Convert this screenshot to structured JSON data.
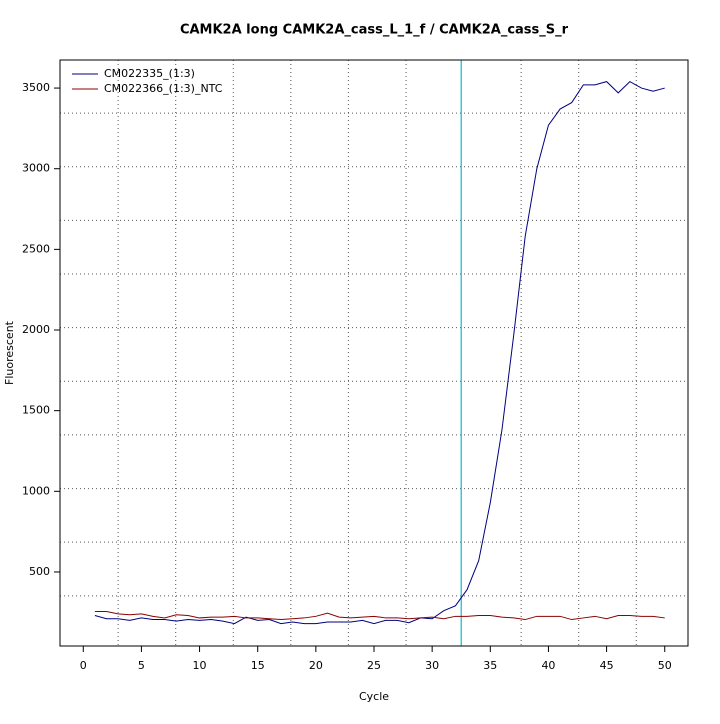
{
  "chart_data": {
    "type": "line",
    "title": "CAMK2A long CAMK2A_cass_L_1_f / CAMK2A_cass_S_r",
    "x_label": "Cycle",
    "y_label": "Fluorescent",
    "x": [
      1,
      2,
      3,
      4,
      5,
      6,
      7,
      8,
      9,
      10,
      11,
      12,
      13,
      14,
      15,
      16,
      17,
      18,
      19,
      20,
      21,
      22,
      23,
      24,
      25,
      26,
      27,
      28,
      29,
      30,
      31,
      32,
      33,
      34,
      35,
      36,
      37,
      38,
      39,
      40,
      41,
      42,
      43,
      44,
      45,
      46,
      47,
      48,
      49,
      50
    ],
    "series": [
      {
        "name": "CM022335_(1:3)",
        "color": "#000080",
        "values": [
          230,
          210,
          210,
          200,
          215,
          205,
          205,
          195,
          205,
          200,
          205,
          195,
          180,
          220,
          200,
          205,
          180,
          190,
          180,
          180,
          190,
          190,
          190,
          200,
          180,
          200,
          200,
          185,
          215,
          210,
          260,
          290,
          390,
          570,
          930,
          1380,
          1960,
          2580,
          3000,
          3270,
          3370,
          3410,
          3520,
          3520,
          3540,
          3470,
          3540,
          3500,
          3480,
          3500
        ]
      },
      {
        "name": "CM022366_(1:3)_NTC",
        "color": "#8b0000",
        "values": [
          255,
          255,
          240,
          235,
          240,
          225,
          215,
          235,
          230,
          215,
          220,
          220,
          225,
          215,
          215,
          210,
          205,
          210,
          215,
          225,
          245,
          220,
          215,
          220,
          225,
          215,
          215,
          210,
          215,
          220,
          210,
          225,
          225,
          230,
          230,
          220,
          215,
          205,
          225,
          225,
          225,
          205,
          215,
          225,
          210,
          230,
          230,
          225,
          225,
          215
        ]
      }
    ],
    "xlim": [
      -2,
      52
    ],
    "ylim": [
      41,
      3674
    ],
    "xticks": [
      0,
      5,
      10,
      15,
      20,
      25,
      30,
      35,
      40,
      45,
      50
    ],
    "yticks": [
      500,
      1000,
      1500,
      2000,
      2500,
      3000,
      3500
    ],
    "vgrid": [
      3,
      7.95,
      12.9,
      17.85,
      22.8,
      27.75,
      37.65,
      42.6,
      47.55
    ],
    "hgrid": [
      352,
      685,
      1017,
      1350,
      1682,
      2015,
      2347,
      2680,
      3012,
      3345
    ],
    "threshold": 32.5,
    "threshold_color": "#00c0d0",
    "legend": "top-left"
  }
}
